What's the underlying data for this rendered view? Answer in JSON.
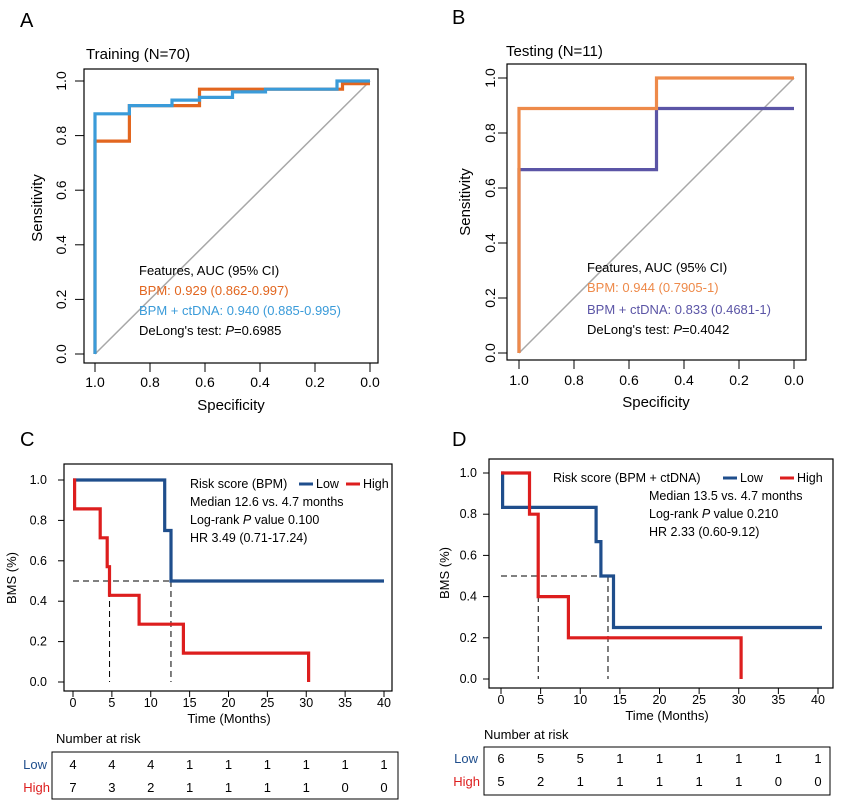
{
  "colors": {
    "axis": "#000000",
    "diag": "#a8a8a8",
    "bpm_train": "#e2661f",
    "combo_train": "#3a9bd9",
    "bpm_test": "#ee8a4a",
    "combo_test": "#5b55a6",
    "km_low": "#1f4e8c",
    "km_high": "#dd1e1e"
  },
  "panels": {
    "A": {
      "letter": "A",
      "title": "Training (N=70)",
      "legend": {
        "header": "Features, AUC (95% CI)",
        "bpm": "BPM: 0.929 (0.862-0.997)",
        "combo": "BPM + ctDNA: 0.940 (0.885-0.995)",
        "delong_prefix": "DeLong's test: ",
        "delong_p": "P",
        "delong_value": "=0.6985"
      }
    },
    "B": {
      "letter": "B",
      "title": "Testing (N=11)",
      "legend": {
        "header": "Features, AUC (95% CI)",
        "bpm": "BPM: 0.944 (0.7905-1)",
        "combo": "BPM + ctDNA: 0.833 (0.4681-1)",
        "delong_prefix": "DeLong's test: ",
        "delong_p": "P",
        "delong_value": "=0.4042"
      }
    },
    "C": {
      "letter": "C",
      "legend": {
        "title": "Risk score (BPM)",
        "low": "Low",
        "high": "High",
        "median": "Median 12.6 vs. 4.7 months",
        "logrank_prefix": "Log-rank ",
        "logrank_p": "P",
        "logrank_value": " value 0.100",
        "hr": "HR 3.49 (0.71-17.24)"
      },
      "risk_table": {
        "title": "Number at risk",
        "low_label": "Low",
        "high_label": "High",
        "low": [
          "4",
          "4",
          "4",
          "1",
          "1",
          "1",
          "1",
          "1",
          "1"
        ],
        "high": [
          "7",
          "3",
          "2",
          "1",
          "1",
          "1",
          "1",
          "0",
          "0"
        ]
      }
    },
    "D": {
      "letter": "D",
      "legend": {
        "title": "Risk score (BPM + ctDNA)",
        "low": "Low",
        "high": "High",
        "median": "Median 13.5 vs. 4.7 months",
        "logrank_prefix": "Log-rank ",
        "logrank_p": "P",
        "logrank_value": " value 0.210",
        "hr": "HR 2.33 (0.60-9.12)"
      },
      "risk_table": {
        "title": "Number at risk",
        "low_label": "Low",
        "high_label": "High",
        "low": [
          "6",
          "5",
          "5",
          "1",
          "1",
          "1",
          "1",
          "1",
          "1"
        ],
        "high": [
          "5",
          "2",
          "1",
          "1",
          "1",
          "1",
          "1",
          "0",
          "0"
        ]
      }
    }
  },
  "chart_data": [
    {
      "panel": "A",
      "type": "line",
      "title": "Training (N=70)",
      "xlabel": "Specificity",
      "ylabel": "Sensitivity",
      "xlim": [
        1.0,
        0.0
      ],
      "ylim": [
        0.0,
        1.0
      ],
      "xticks": [
        "1.0",
        "0.8",
        "0.6",
        "0.4",
        "0.2",
        "0.0"
      ],
      "yticks": [
        "0.0",
        "0.2",
        "0.4",
        "0.6",
        "0.8",
        "1.0"
      ],
      "reference_line": [
        [
          1.0,
          0.0
        ],
        [
          0.0,
          1.0
        ]
      ],
      "series": [
        {
          "name": "BPM",
          "color_key": "bpm_train",
          "points": [
            [
              1.0,
              0.0
            ],
            [
              1.0,
              0.78
            ],
            [
              0.875,
              0.78
            ],
            [
              0.875,
              0.91
            ],
            [
              0.72,
              0.91
            ],
            [
              0.62,
              0.91
            ],
            [
              0.62,
              0.97
            ],
            [
              0.1,
              0.97
            ],
            [
              0.1,
              0.99
            ],
            [
              0.0,
              0.99
            ]
          ]
        },
        {
          "name": "BPM + ctDNA",
          "color_key": "combo_train",
          "points": [
            [
              1.0,
              0.0
            ],
            [
              1.0,
              0.88
            ],
            [
              0.875,
              0.88
            ],
            [
              0.875,
              0.91
            ],
            [
              0.72,
              0.91
            ],
            [
              0.72,
              0.93
            ],
            [
              0.62,
              0.93
            ],
            [
              0.62,
              0.94
            ],
            [
              0.5,
              0.94
            ],
            [
              0.5,
              0.96
            ],
            [
              0.38,
              0.96
            ],
            [
              0.38,
              0.97
            ],
            [
              0.12,
              0.97
            ],
            [
              0.12,
              1.0
            ],
            [
              0.0,
              1.0
            ]
          ]
        }
      ]
    },
    {
      "panel": "B",
      "type": "line",
      "title": "Testing (N=11)",
      "xlabel": "Specificity",
      "ylabel": "Sensitivity",
      "xlim": [
        1.0,
        0.0
      ],
      "ylim": [
        0.0,
        1.0
      ],
      "xticks": [
        "1.0",
        "0.8",
        "0.6",
        "0.4",
        "0.2",
        "0.0"
      ],
      "yticks": [
        "0.0",
        "0.2",
        "0.4",
        "0.6",
        "0.8",
        "1.0"
      ],
      "reference_line": [
        [
          1.0,
          0.0
        ],
        [
          0.0,
          1.0
        ]
      ],
      "series": [
        {
          "name": "BPM + ctDNA",
          "color_key": "combo_test",
          "points": [
            [
              1.0,
              0.0
            ],
            [
              1.0,
              0.667
            ],
            [
              0.5,
              0.667
            ],
            [
              0.5,
              0.889
            ],
            [
              0.0,
              0.889
            ]
          ]
        },
        {
          "name": "BPM",
          "color_key": "bpm_test",
          "points": [
            [
              1.0,
              0.0
            ],
            [
              1.0,
              0.889
            ],
            [
              0.5,
              0.889
            ],
            [
              0.5,
              1.0
            ],
            [
              0.0,
              1.0
            ]
          ]
        }
      ]
    },
    {
      "panel": "C",
      "type": "line",
      "xlabel": "Time (Months)",
      "ylabel": "BMS (%)",
      "xlim": [
        0,
        40
      ],
      "ylim": [
        0,
        1
      ],
      "xticks": [
        "0",
        "5",
        "10",
        "15",
        "20",
        "25",
        "30",
        "35",
        "40"
      ],
      "yticks": [
        "0.0",
        "0.2",
        "0.4",
        "0.6",
        "0.8",
        "1.0"
      ],
      "median_line": {
        "y": 0.5,
        "x_values": [
          4.7,
          12.6
        ]
      },
      "series": [
        {
          "name": "Low",
          "color_key": "km_low",
          "points": [
            [
              0,
              1.0
            ],
            [
              11.8,
              1.0
            ],
            [
              11.8,
              0.75
            ],
            [
              12.6,
              0.75
            ],
            [
              12.6,
              0.5
            ],
            [
              40,
              0.5
            ]
          ]
        },
        {
          "name": "High",
          "color_key": "km_high",
          "points": [
            [
              0,
              1.0
            ],
            [
              0.2,
              1.0
            ],
            [
              0.2,
              0.857
            ],
            [
              3.5,
              0.857
            ],
            [
              3.5,
              0.714
            ],
            [
              4.4,
              0.714
            ],
            [
              4.4,
              0.571
            ],
            [
              4.7,
              0.571
            ],
            [
              4.7,
              0.429
            ],
            [
              8.5,
              0.429
            ],
            [
              8.5,
              0.286
            ],
            [
              14.2,
              0.286
            ],
            [
              14.2,
              0.143
            ],
            [
              30.3,
              0.143
            ],
            [
              30.3,
              0.0
            ]
          ]
        }
      ]
    },
    {
      "panel": "D",
      "type": "line",
      "xlabel": "Time (Months)",
      "ylabel": "BMS (%)",
      "xlim": [
        0,
        40
      ],
      "ylim": [
        0,
        1
      ],
      "xticks": [
        "0",
        "5",
        "10",
        "15",
        "20",
        "25",
        "30",
        "35",
        "40"
      ],
      "yticks": [
        "0.0",
        "0.2",
        "0.4",
        "0.6",
        "0.8",
        "1.0"
      ],
      "median_line": {
        "y": 0.5,
        "x_values": [
          4.7,
          13.5
        ]
      },
      "series": [
        {
          "name": "Low",
          "color_key": "km_low",
          "points": [
            [
              0,
              1.0
            ],
            [
              0.2,
              1.0
            ],
            [
              0.2,
              0.833
            ],
            [
              12.0,
              0.833
            ],
            [
              12.0,
              0.667
            ],
            [
              12.6,
              0.667
            ],
            [
              12.6,
              0.5
            ],
            [
              14.2,
              0.5
            ],
            [
              14.2,
              0.25
            ],
            [
              40.5,
              0.25
            ]
          ]
        },
        {
          "name": "High",
          "color_key": "km_high",
          "points": [
            [
              0,
              1.0
            ],
            [
              3.6,
              1.0
            ],
            [
              3.6,
              0.8
            ],
            [
              4.7,
              0.8
            ],
            [
              4.7,
              0.4
            ],
            [
              8.5,
              0.4
            ],
            [
              8.5,
              0.2
            ],
            [
              30.3,
              0.2
            ],
            [
              30.3,
              0.0
            ]
          ]
        }
      ]
    }
  ]
}
